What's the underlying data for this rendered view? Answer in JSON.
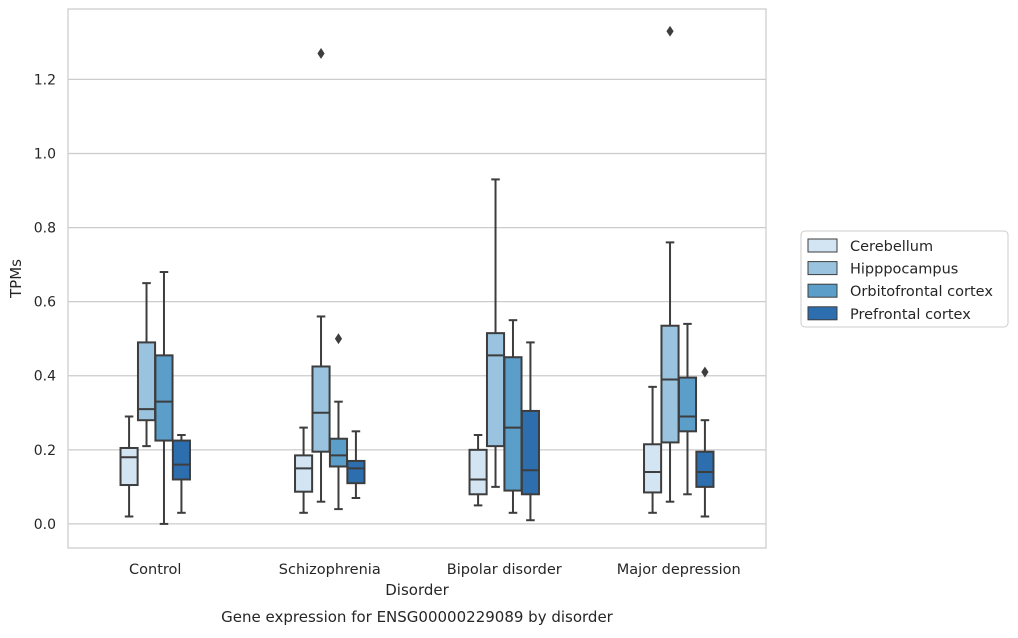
{
  "chart_data": {
    "type": "boxplot",
    "caption": "Gene expression for ENSG00000229089 by disorder",
    "xlabel": "Disorder",
    "ylabel": "TPMs",
    "ylim": [
      -0.065,
      1.39
    ],
    "yticks": [
      0.0,
      0.2,
      0.4,
      0.6,
      0.8,
      1.0,
      1.2
    ],
    "ytick_labels": [
      "0.0",
      "0.2",
      "0.4",
      "0.6",
      "0.8",
      "1.0",
      "1.2"
    ],
    "grid": true,
    "legend_position": "right",
    "categories": [
      "Control",
      "Schizophrenia",
      "Bipolar disorder",
      "Major depression"
    ],
    "series": [
      {
        "name": "Cerebellum",
        "color": "#d3e4f3",
        "boxes": [
          {
            "whislo": 0.02,
            "q1": 0.105,
            "med": 0.18,
            "q3": 0.205,
            "whishi": 0.29,
            "fliers": []
          },
          {
            "whislo": 0.03,
            "q1": 0.087,
            "med": 0.15,
            "q3": 0.185,
            "whishi": 0.26,
            "fliers": []
          },
          {
            "whislo": 0.05,
            "q1": 0.08,
            "med": 0.12,
            "q3": 0.2,
            "whishi": 0.24,
            "fliers": []
          },
          {
            "whislo": 0.03,
            "q1": 0.085,
            "med": 0.14,
            "q3": 0.215,
            "whishi": 0.37,
            "fliers": []
          }
        ]
      },
      {
        "name": "Hipppocampus",
        "color": "#99c3de",
        "boxes": [
          {
            "whislo": 0.21,
            "q1": 0.28,
            "med": 0.31,
            "q3": 0.49,
            "whishi": 0.65,
            "fliers": []
          },
          {
            "whislo": 0.06,
            "q1": 0.195,
            "med": 0.3,
            "q3": 0.425,
            "whishi": 0.56,
            "fliers": [
              1.27
            ]
          },
          {
            "whislo": 0.1,
            "q1": 0.21,
            "med": 0.455,
            "q3": 0.515,
            "whishi": 0.93,
            "fliers": []
          },
          {
            "whislo": 0.06,
            "q1": 0.22,
            "med": 0.39,
            "q3": 0.535,
            "whishi": 0.76,
            "fliers": [
              1.33
            ]
          }
        ]
      },
      {
        "name": "Orbitofrontal cortex",
        "color": "#5a9ec9",
        "boxes": [
          {
            "whislo": 0.0,
            "q1": 0.225,
            "med": 0.33,
            "q3": 0.455,
            "whishi": 0.68,
            "fliers": []
          },
          {
            "whislo": 0.04,
            "q1": 0.155,
            "med": 0.185,
            "q3": 0.23,
            "whishi": 0.33,
            "fliers": [
              0.5
            ]
          },
          {
            "whislo": 0.03,
            "q1": 0.09,
            "med": 0.26,
            "q3": 0.45,
            "whishi": 0.55,
            "fliers": []
          },
          {
            "whislo": 0.08,
            "q1": 0.25,
            "med": 0.29,
            "q3": 0.395,
            "whishi": 0.54,
            "fliers": []
          }
        ]
      },
      {
        "name": "Prefrontal cortex",
        "color": "#2d6fae",
        "boxes": [
          {
            "whislo": 0.03,
            "q1": 0.12,
            "med": 0.16,
            "q3": 0.225,
            "whishi": 0.24,
            "fliers": []
          },
          {
            "whislo": 0.07,
            "q1": 0.11,
            "med": 0.15,
            "q3": 0.17,
            "whishi": 0.25,
            "fliers": []
          },
          {
            "whislo": 0.01,
            "q1": 0.08,
            "med": 0.145,
            "q3": 0.305,
            "whishi": 0.49,
            "fliers": []
          },
          {
            "whislo": 0.02,
            "q1": 0.1,
            "med": 0.14,
            "q3": 0.195,
            "whishi": 0.28,
            "fliers": [
              0.41
            ]
          }
        ]
      }
    ]
  }
}
